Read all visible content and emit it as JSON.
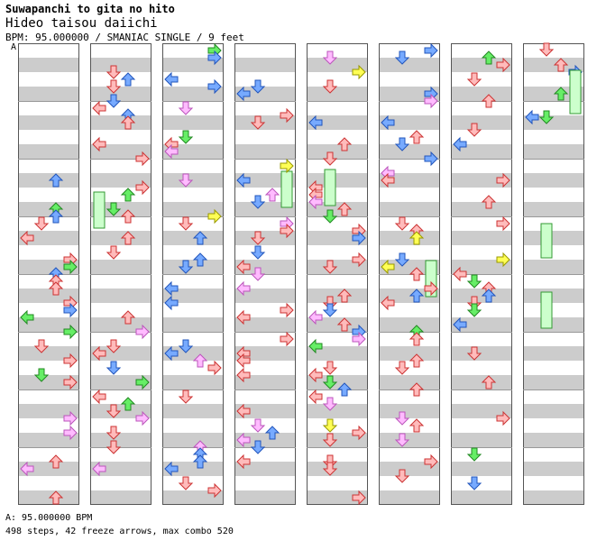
{
  "header": {
    "title": "Suwapanchi to gita no hito",
    "subtitle": "Hideo taisou daiichi",
    "meta": "BPM: 95.000000 / SMANIAC SINGLE / 9 feet",
    "marker": "A"
  },
  "footer": {
    "bpm_line": "A: 95.000000 BPM",
    "steps_line": "498 steps, 42 freeze arrows, max combo 520"
  },
  "colors": {
    "band_gray": "#cccccc",
    "column_border": "#555555",
    "arrow_red_fill": "#ffbbbb",
    "arrow_red_stroke": "#cc3333",
    "arrow_blue_fill": "#77aaff",
    "arrow_blue_stroke": "#2255bb",
    "arrow_pink_fill": "#ffbbff",
    "arrow_pink_stroke": "#bb55bb",
    "arrow_green_fill": "#66ee66",
    "arrow_green_stroke": "#228822",
    "arrow_yellow_fill": "#ffff55",
    "arrow_yellow_stroke": "#999900",
    "freeze_fill": "#ccffcc",
    "freeze_stroke": "#339933"
  },
  "chart_data": {
    "type": "step-chart",
    "measures_total": 33,
    "panels": 8
  }
}
